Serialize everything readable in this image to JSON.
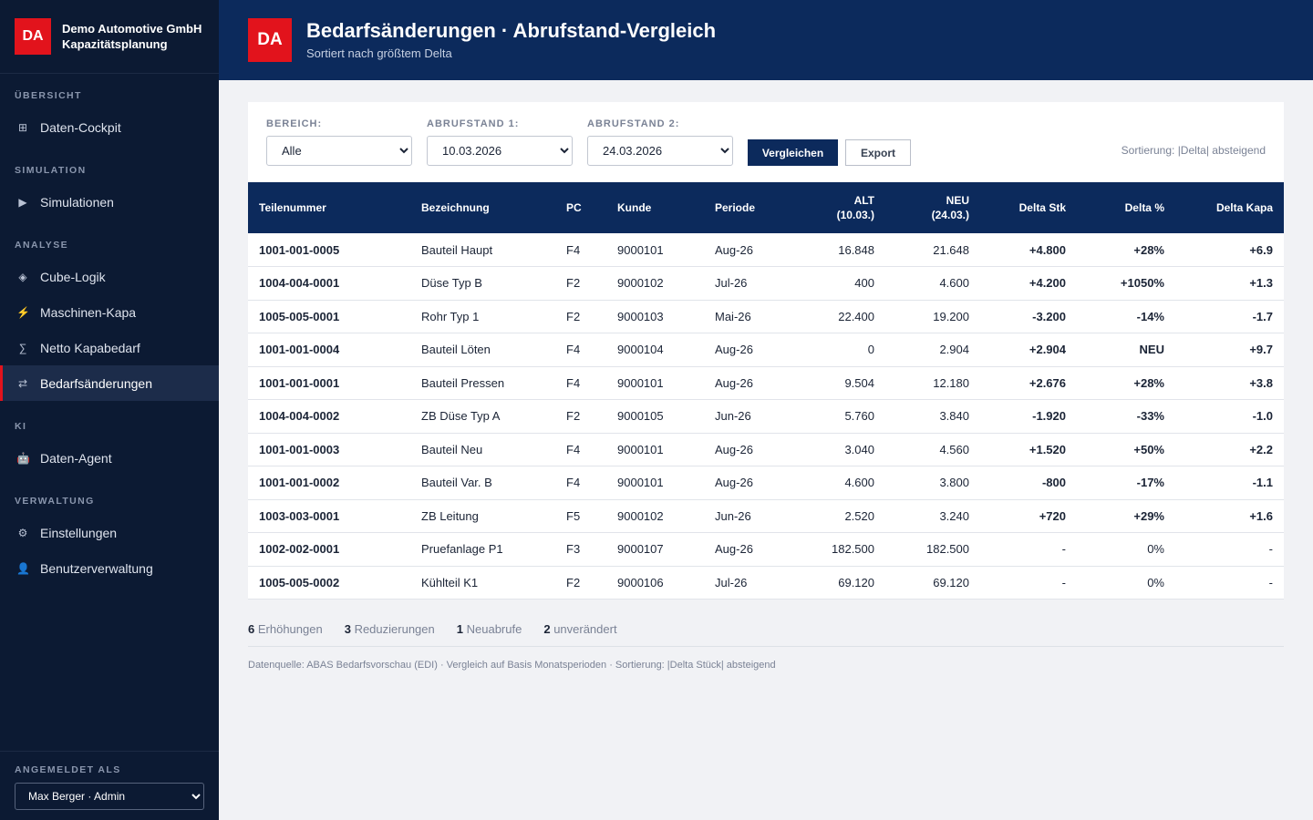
{
  "brand": {
    "logo": "DA",
    "company": "Demo Automotive GmbH",
    "product": "Kapazitätsplanung"
  },
  "nav": {
    "sections": {
      "overview": "ÜBERSICHT",
      "simulation": "SIMULATION",
      "analysis": "ANALYSE",
      "ai": "KI",
      "admin": "VERWALTUNG"
    },
    "items": {
      "cockpit": {
        "label": "Daten-Cockpit",
        "icon": "⊞"
      },
      "simulations": {
        "label": "Simulationen",
        "icon": "▶"
      },
      "cube": {
        "label": "Cube-Logik",
        "icon": "◈"
      },
      "machine": {
        "label": "Maschinen-Kapa",
        "icon": "⚡"
      },
      "netto": {
        "label": "Netto Kapabedarf",
        "icon": "∑"
      },
      "changes": {
        "label": "Bedarfsänderungen",
        "icon": "⇄"
      },
      "agent": {
        "label": "Daten-Agent",
        "icon": "🤖"
      },
      "settings": {
        "label": "Einstellungen",
        "icon": "⚙"
      },
      "users": {
        "label": "Benutzerverwaltung",
        "icon": "👤"
      }
    },
    "active": "changes"
  },
  "user": {
    "label": "ANGEMELDET ALS",
    "selected": "Max Berger · Admin"
  },
  "header": {
    "logo": "DA",
    "title": "Bedarfsänderungen · Abrufstand-Vergleich",
    "subtitle": "Sortiert nach größtem Delta"
  },
  "filters": {
    "bereich": {
      "label": "BEREICH:",
      "value": "Alle"
    },
    "abruf1": {
      "label": "ABRUFSTAND 1:",
      "value": "10.03.2026"
    },
    "abruf2": {
      "label": "ABRUFSTAND 2:",
      "value": "24.03.2026"
    },
    "compare_label": "Vergleichen",
    "export_label": "Export",
    "sort_note": "Sortierung: |Delta| absteigend"
  },
  "table": {
    "headers": {
      "part": "Teilenummer",
      "desc": "Bezeichnung",
      "pc": "PC",
      "customer": "Kunde",
      "period": "Periode",
      "alt": "ALT",
      "alt_date": "(10.03.)",
      "neu": "NEU",
      "neu_date": "(24.03.)",
      "delta_stk": "Delta Stk",
      "delta_pct": "Delta %",
      "delta_kapa": "Delta Kapa"
    },
    "rows": [
      {
        "part": "1001-001-0005",
        "desc": "Bauteil Haupt",
        "pc": "F4",
        "customer": "9000101",
        "period": "Aug-26",
        "alt": "16.848",
        "neu": "21.648",
        "dstk": "+4.800",
        "dpct": "+28%",
        "dkapa": "+6.9",
        "trend": "pos"
      },
      {
        "part": "1004-004-0001",
        "desc": "Düse Typ B",
        "pc": "F2",
        "customer": "9000102",
        "period": "Jul-26",
        "alt": "400",
        "neu": "4.600",
        "dstk": "+4.200",
        "dpct": "+1050%",
        "dkapa": "+1.3",
        "trend": "pos"
      },
      {
        "part": "1005-005-0001",
        "desc": "Rohr Typ 1",
        "pc": "F2",
        "customer": "9000103",
        "period": "Mai-26",
        "alt": "22.400",
        "neu": "19.200",
        "dstk": "-3.200",
        "dpct": "-14%",
        "dkapa": "-1.7",
        "trend": "neg"
      },
      {
        "part": "1001-001-0004",
        "desc": "Bauteil Löten",
        "pc": "F4",
        "customer": "9000104",
        "period": "Aug-26",
        "alt": "0",
        "neu": "2.904",
        "dstk": "+2.904",
        "dpct": "NEU",
        "dkapa": "+9.7",
        "trend": "pos"
      },
      {
        "part": "1001-001-0001",
        "desc": "Bauteil Pressen",
        "pc": "F4",
        "customer": "9000101",
        "period": "Aug-26",
        "alt": "9.504",
        "neu": "12.180",
        "dstk": "+2.676",
        "dpct": "+28%",
        "dkapa": "+3.8",
        "trend": "pos"
      },
      {
        "part": "1004-004-0002",
        "desc": "ZB Düse Typ A",
        "pc": "F2",
        "customer": "9000105",
        "period": "Jun-26",
        "alt": "5.760",
        "neu": "3.840",
        "dstk": "-1.920",
        "dpct": "-33%",
        "dkapa": "-1.0",
        "trend": "neg"
      },
      {
        "part": "1001-001-0003",
        "desc": "Bauteil Neu",
        "pc": "F4",
        "customer": "9000101",
        "period": "Aug-26",
        "alt": "3.040",
        "neu": "4.560",
        "dstk": "+1.520",
        "dpct": "+50%",
        "dkapa": "+2.2",
        "trend": "pos"
      },
      {
        "part": "1001-001-0002",
        "desc": "Bauteil Var. B",
        "pc": "F4",
        "customer": "9000101",
        "period": "Aug-26",
        "alt": "4.600",
        "neu": "3.800",
        "dstk": "-800",
        "dpct": "-17%",
        "dkapa": "-1.1",
        "trend": "neg"
      },
      {
        "part": "1003-003-0001",
        "desc": "ZB Leitung",
        "pc": "F5",
        "customer": "9000102",
        "period": "Jun-26",
        "alt": "2.520",
        "neu": "3.240",
        "dstk": "+720",
        "dpct": "+29%",
        "dkapa": "+1.6",
        "trend": "pos"
      },
      {
        "part": "1002-002-0001",
        "desc": "Pruefanlage P1",
        "pc": "F3",
        "customer": "9000107",
        "period": "Aug-26",
        "alt": "182.500",
        "neu": "182.500",
        "dstk": "-",
        "dpct": "0%",
        "dkapa": "-",
        "trend": "neu"
      },
      {
        "part": "1005-005-0002",
        "desc": "Kühlteil K1",
        "pc": "F2",
        "customer": "9000106",
        "period": "Jul-26",
        "alt": "69.120",
        "neu": "69.120",
        "dstk": "-",
        "dpct": "0%",
        "dkapa": "-",
        "trend": "neu"
      }
    ]
  },
  "summary": {
    "increases": {
      "count": "6",
      "label": "Erhöhungen"
    },
    "reductions": {
      "count": "3",
      "label": "Reduzierungen"
    },
    "new_calls": {
      "count": "1",
      "label": "Neuabrufe"
    },
    "unchanged": {
      "count": "2",
      "label": "unverändert"
    }
  },
  "footer": {
    "note": "Datenquelle: ABAS Bedarfsvorschau (EDI) · Vergleich auf Basis Monatsperioden · Sortierung: |Delta Stück| absteigend"
  },
  "colors": {
    "sidebar": "#0c1a33",
    "header": "#0c2a5c",
    "accent": "#e2131c",
    "positive": "#1e7e34",
    "negative": "#d11a1f"
  }
}
